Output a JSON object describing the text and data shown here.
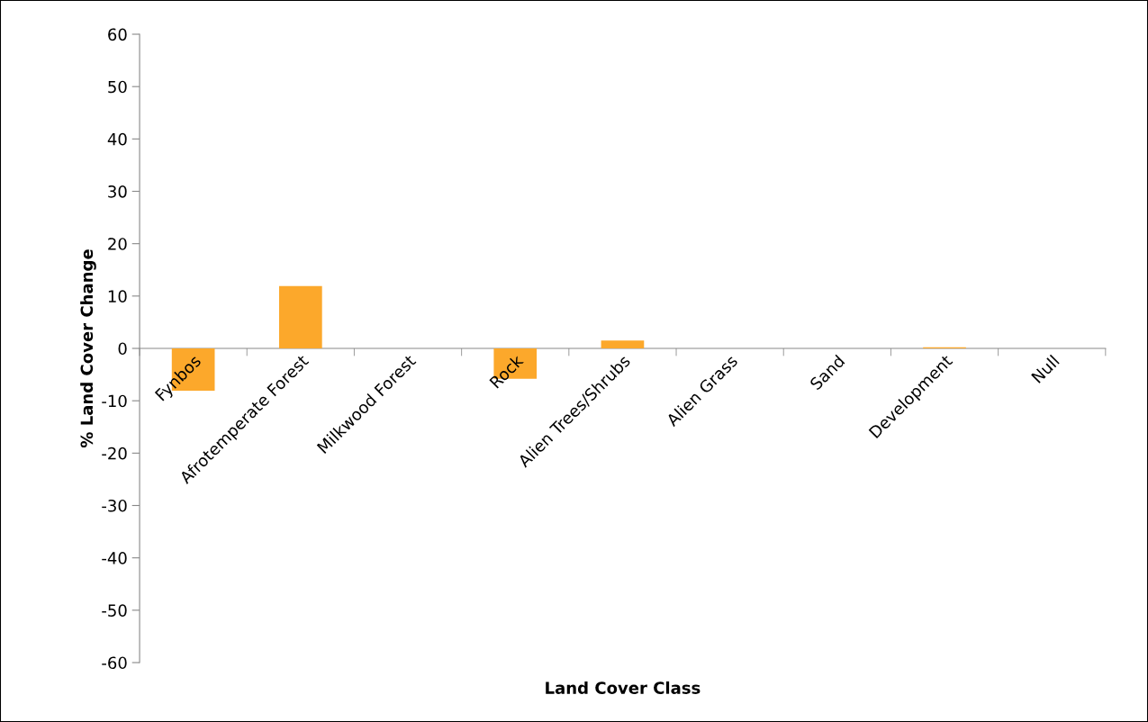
{
  "chart_data": {
    "type": "bar",
    "xlabel": "Land Cover Class",
    "ylabel": "% Land Cover Change",
    "categories": [
      "Fynbos",
      "Afrotemperate Forest",
      "Milkwood Forest",
      "Rock",
      "Alien Trees/Shrubs",
      "Alien Grass",
      "Sand",
      "Development",
      "Null"
    ],
    "values": [
      -8.1,
      11.9,
      0,
      -5.8,
      1.5,
      0,
      0,
      0.2,
      0
    ],
    "color": "#fca82b",
    "ylim": [
      -60,
      60
    ],
    "yticks": [
      -60,
      -50,
      -40,
      -30,
      -20,
      -10,
      0,
      10,
      20,
      30,
      40,
      50,
      60
    ],
    "grid": false,
    "legend": false
  }
}
